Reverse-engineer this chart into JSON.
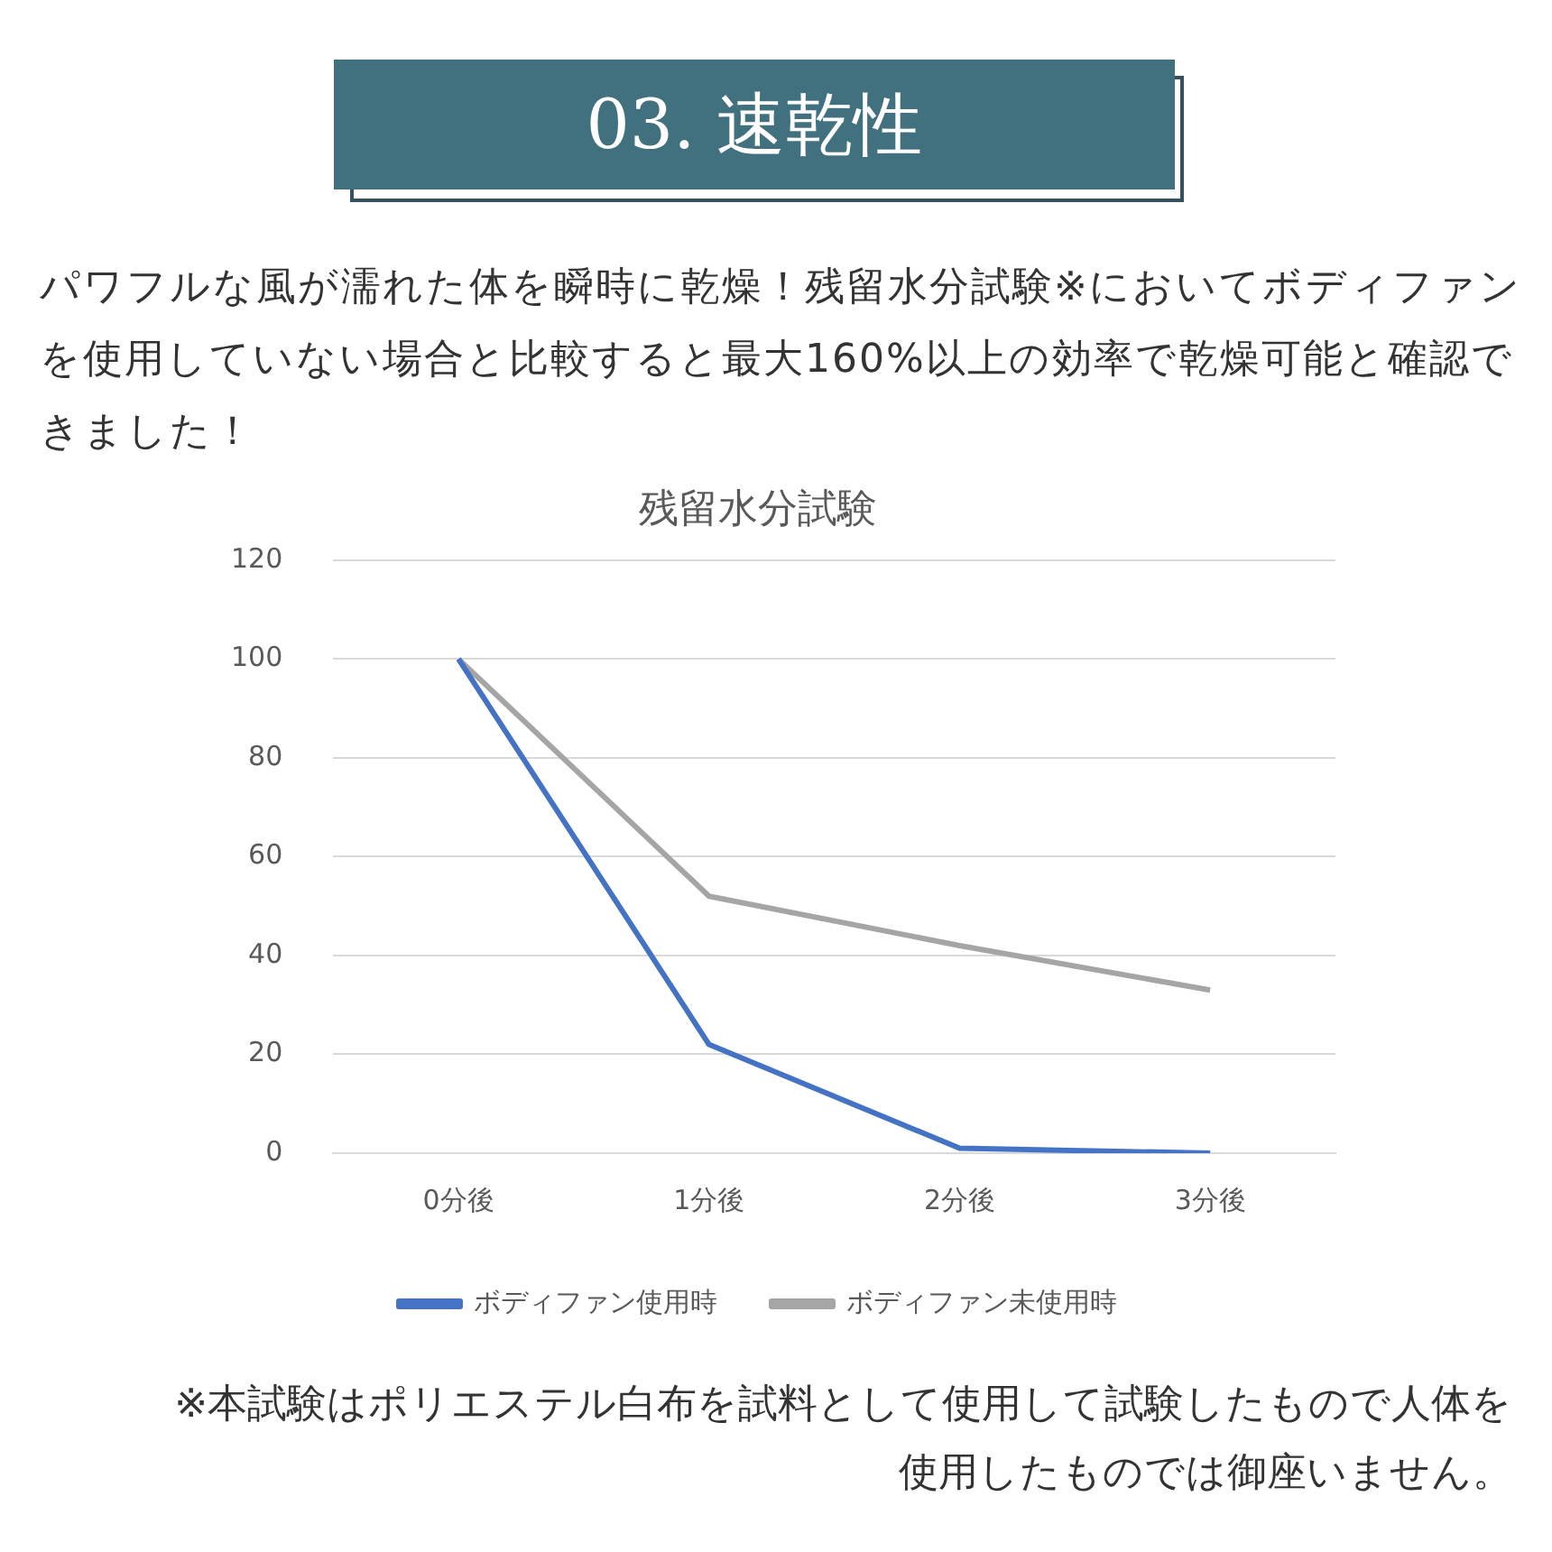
{
  "chart_data": {
    "type": "line",
    "title": "残留水分試験",
    "categories": [
      "0分後",
      "1分後",
      "2分後",
      "3分後"
    ],
    "series": [
      {
        "name": "ボディファン使用時",
        "color": "#4472c4",
        "values": [
          100,
          22,
          1,
          0
        ]
      },
      {
        "name": "ボディファン未使用時",
        "color": "#a5a5a5",
        "values": [
          100,
          52,
          42,
          33
        ]
      }
    ],
    "ylim": [
      0,
      120
    ],
    "yticks": [
      0,
      20,
      40,
      60,
      80,
      100,
      120
    ],
    "grid": "y",
    "legend": "bottom",
    "annotations": [
      "03. 速乾性",
      "パワフルな風が濡れた体を瞬時に乾燥！残留水分試験※においてボディファンを使用していない場合と比較すると最大160%以上の効率で乾燥可能と確認できました！",
      "※本試験はポリエステル白布を試料として使用して試験したもので人体を使用したものでは御座いません。"
    ]
  }
}
